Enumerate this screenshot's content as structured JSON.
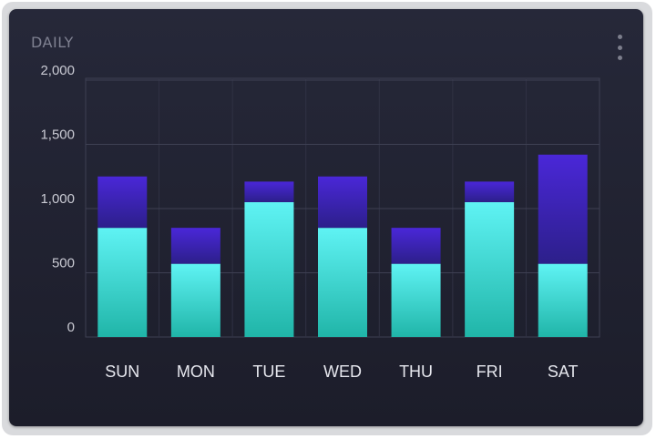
{
  "header": {
    "title": "DAILY",
    "menu_icon": "more-vertical-icon"
  },
  "colors": {
    "bottom_top": "#5ff3f4",
    "bottom_bottom": "#20b5a8",
    "top_top": "#4a27d8",
    "top_bottom": "#2c1f8a",
    "grid": "#3e4053",
    "axis_text": "#c9cad3"
  },
  "chart_data": {
    "type": "bar",
    "stacked": true,
    "title": "DAILY",
    "xlabel": "",
    "ylabel": "",
    "categories": [
      "SUN",
      "MON",
      "TUE",
      "WED",
      "THU",
      "FRI",
      "SAT"
    ],
    "y_ticks": [
      "0",
      "500",
      "1,000",
      "1,500",
      "2,000"
    ],
    "ylim": [
      0,
      2000
    ],
    "grid": true,
    "series": [
      {
        "values": [
          850,
          570,
          1050,
          850,
          570,
          1050,
          570
        ]
      },
      {
        "values": [
          400,
          280,
          160,
          400,
          280,
          160,
          850
        ]
      }
    ]
  }
}
